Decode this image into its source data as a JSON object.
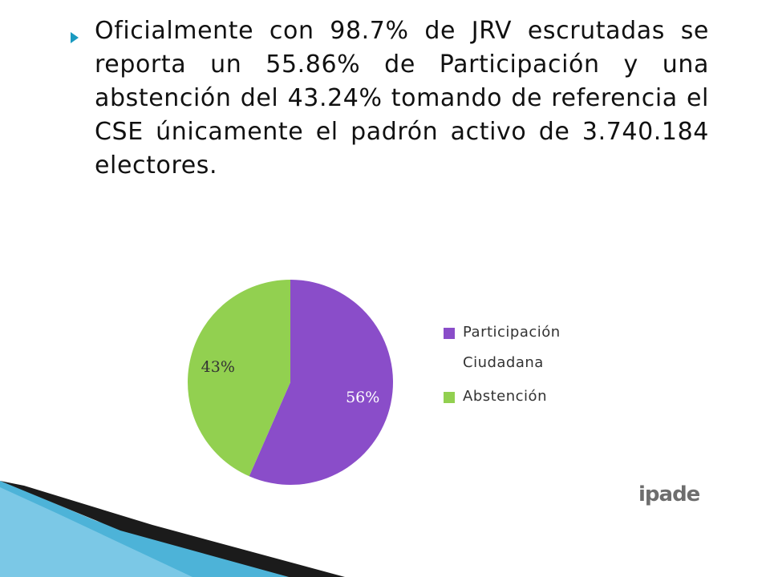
{
  "slide": {
    "bullet_text": "Oficialmente  con 98.7% de JRV escrutadas se reporta un 55.86% de Participación y una abstención del 43.24%  tomando de referencia el CSE  únicamente  el padrón activo de 3.740.184 electores.",
    "logo_text": "ipade",
    "icons": [
      "bullet-arrow-icon",
      "ipade-logo-icon"
    ]
  },
  "colors": {
    "participacion": "#8A4DC9",
    "abstencion": "#92D050",
    "bullet": "#1A9AC0",
    "swoosh_blue": "#4DB3D8",
    "swoosh_dark": "#1B1B1B"
  },
  "chart_data": {
    "type": "pie",
    "title": "",
    "categories": [
      "Participación Ciudadana",
      "Abstención"
    ],
    "values": [
      56,
      43
    ],
    "data_labels": [
      "56%",
      "43%"
    ],
    "legend": {
      "placement": "right",
      "entries": [
        "Participación Ciudadana",
        "Abstención"
      ]
    }
  }
}
